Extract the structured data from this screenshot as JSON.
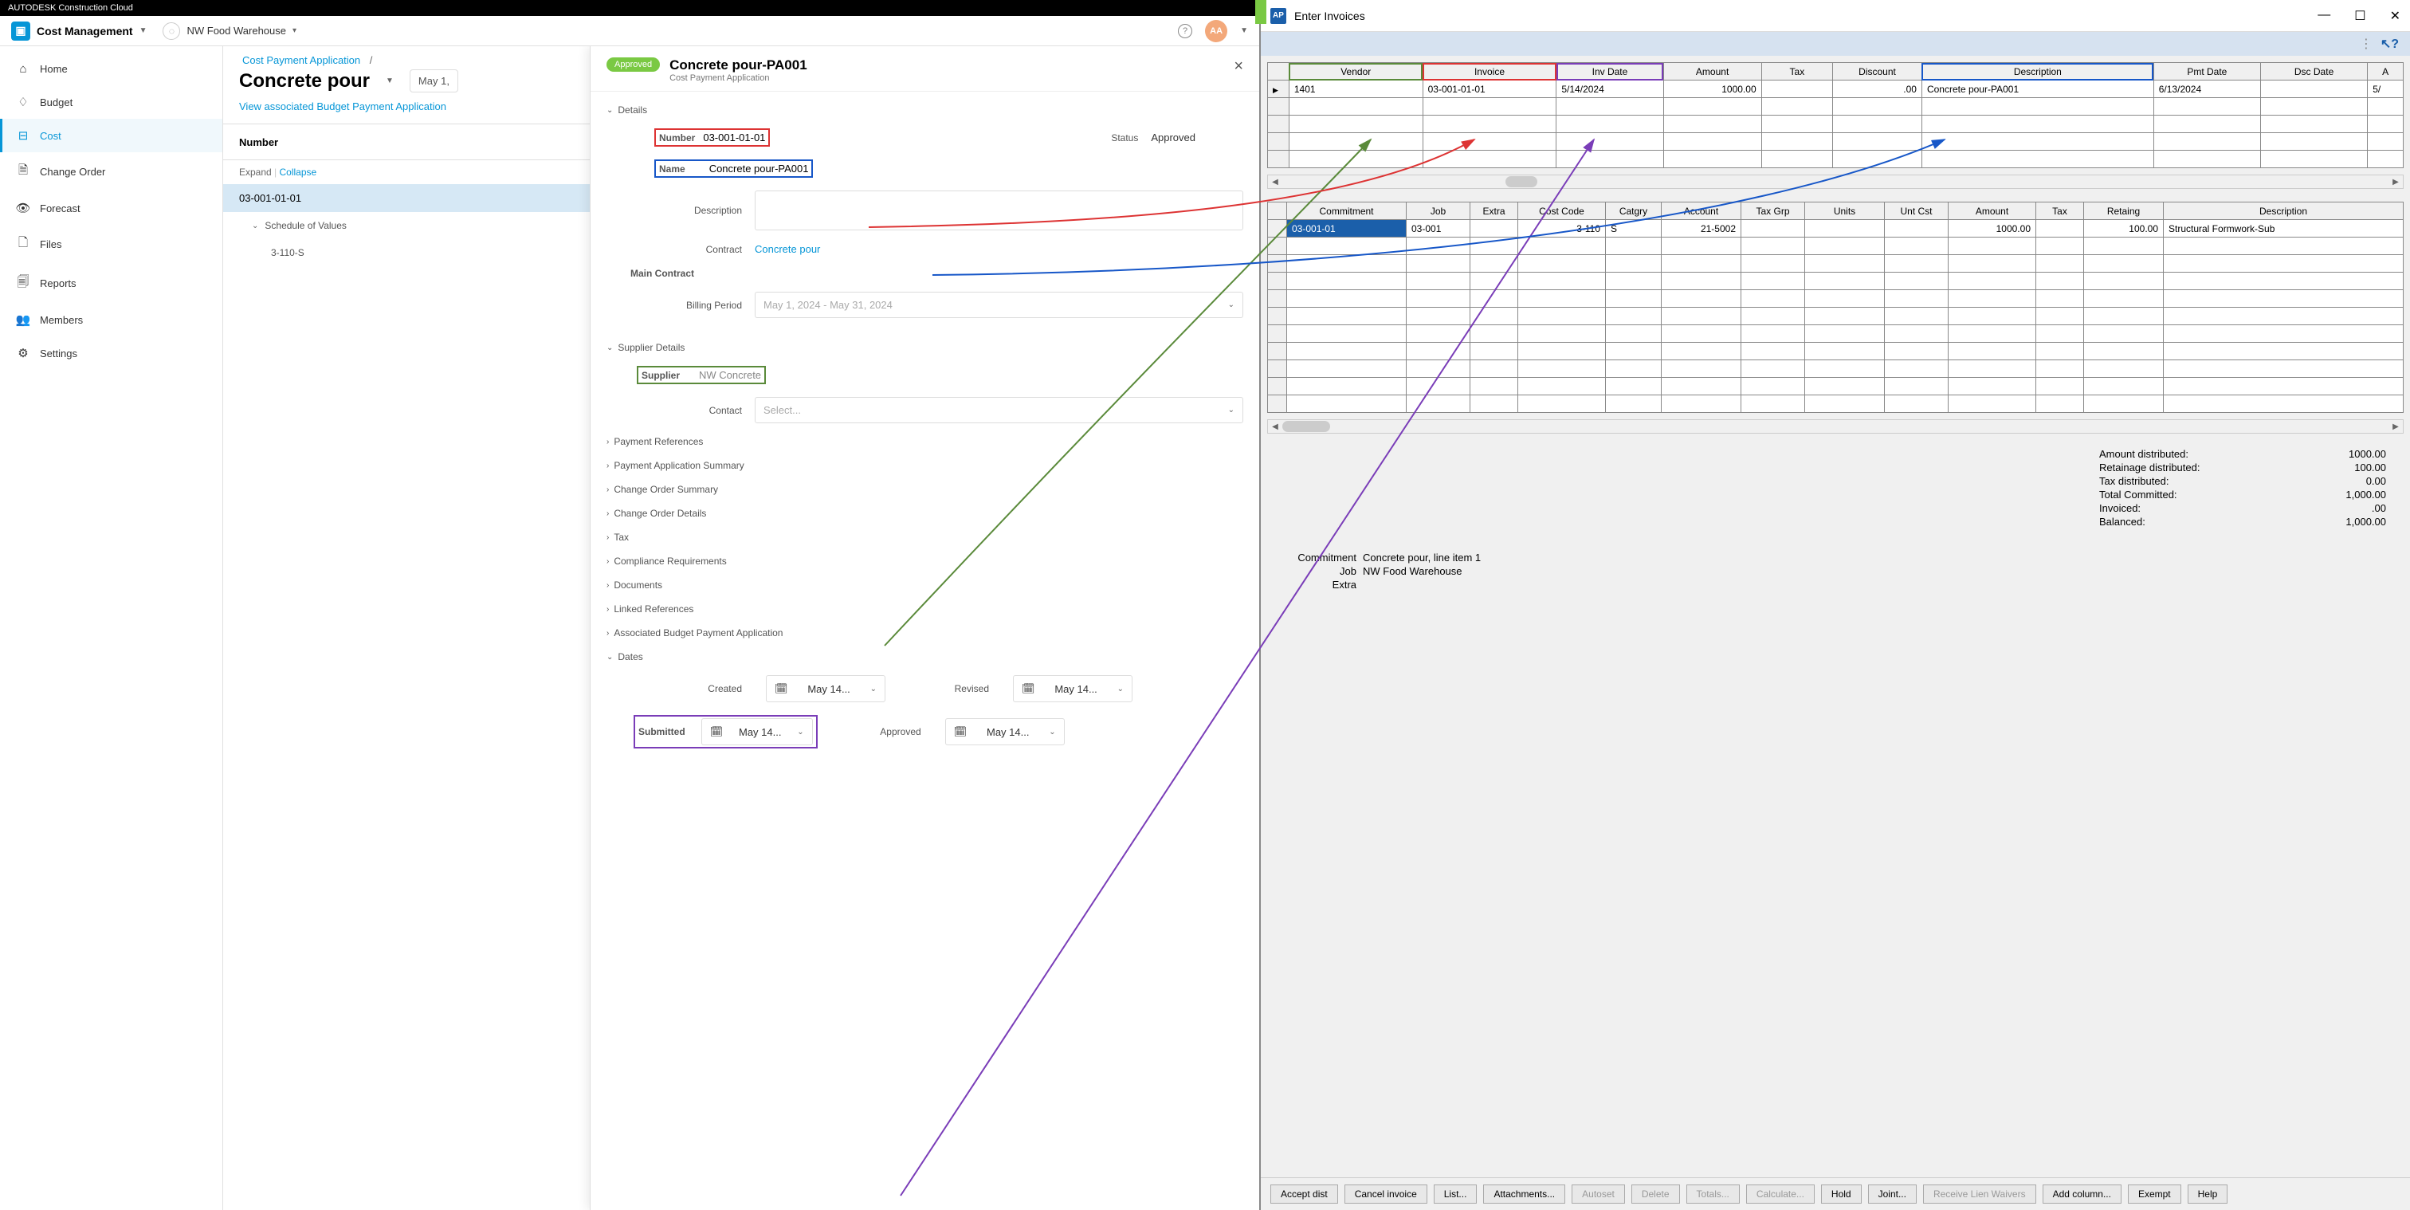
{
  "acc": {
    "brand": "AUTODESK Construction Cloud",
    "module": "Cost Management",
    "project": "NW Food Warehouse",
    "avatar": "AA",
    "nav": [
      {
        "icon": "⌂",
        "label": "Home"
      },
      {
        "icon": "♢",
        "label": "Budget"
      },
      {
        "icon": "⊟",
        "label": "Cost",
        "active": true
      },
      {
        "icon": "🗎",
        "label": "Change Order"
      },
      {
        "icon": "👁",
        "label": "Forecast"
      },
      {
        "icon": "🗋",
        "label": "Files"
      },
      {
        "icon": "🗐",
        "label": "Reports"
      },
      {
        "icon": "👥",
        "label": "Members"
      },
      {
        "icon": "⚙",
        "label": "Settings"
      }
    ],
    "breadcrumb": "Cost Payment Application",
    "page_title": "Concrete pour",
    "date_filter": "May 1,",
    "view_link": "View associated Budget Payment Application",
    "tbl_header": "Number",
    "expand": "Expand",
    "collapse": "Collapse",
    "tree": {
      "row1": "03-001-01-01",
      "row2": "Schedule of Values",
      "row3": "3-110-S"
    }
  },
  "panel": {
    "badge": "Approved",
    "title": "Concrete pour-PA001",
    "sub": "Cost Payment Application",
    "details_label": "Details",
    "fields": {
      "number_label": "Number",
      "number_value": "03-001-01-01",
      "status_label": "Status",
      "status_value": "Approved",
      "name_label": "Name",
      "name_value": "Concrete pour-PA001",
      "desc_label": "Description",
      "contract_label": "Contract",
      "contract_value": "Concrete pour",
      "main_contract_label": "Main Contract",
      "billing_label": "Billing Period",
      "billing_value": "May 1, 2024 - May 31, 2024",
      "supplier_section": "Supplier Details",
      "supplier_label": "Supplier",
      "supplier_value": "NW Concrete",
      "contact_label": "Contact",
      "contact_placeholder": "Select..."
    },
    "sections": [
      "Payment References",
      "Payment Application Summary",
      "Change Order Summary",
      "Change Order Details",
      "Tax",
      "Compliance Requirements",
      "Documents",
      "Linked References",
      "Associated Budget Payment Application",
      "Dates"
    ],
    "dates": {
      "created_label": "Created",
      "created_value": "May 14...",
      "revised_label": "Revised",
      "revised_value": "May 14...",
      "submitted_label": "Submitted",
      "submitted_value": "May 14...",
      "approved_label": "Approved",
      "approved_value": "May 14..."
    }
  },
  "win": {
    "title": "Enter Invoices",
    "invoice_headers": [
      "Vendor",
      "Invoice",
      "Inv Date",
      "Amount",
      "Tax",
      "Discount",
      "Description",
      "Pmt Date",
      "Dsc Date",
      "A"
    ],
    "invoice_row": [
      "1401",
      "03-001-01-01",
      "5/14/2024",
      "1000.00",
      "",
      ".00",
      "Concrete pour-PA001",
      "6/13/2024",
      "",
      "5/"
    ],
    "dist_headers": [
      "Commitment",
      "Job",
      "Extra",
      "Cost Code",
      "Catgry",
      "Account",
      "Tax Grp",
      "Units",
      "Unt Cst",
      "Amount",
      "Tax",
      "Retaing",
      "Description"
    ],
    "dist_row": [
      "03-001-01",
      "03-001",
      "",
      "3-110",
      "S",
      "21-5002",
      "",
      "",
      "",
      "1000.00",
      "",
      "100.00",
      "Structural Formwork-Sub"
    ],
    "summary": {
      "amt_dist_label": "Amount distributed:",
      "amt_dist": "1000.00",
      "ret_dist_label": "Retainage distributed:",
      "ret_dist": "100.00",
      "tax_dist_label": "Tax distributed:",
      "tax_dist": "0.00",
      "tot_comm_label": "Total Committed:",
      "tot_comm": "1,000.00",
      "invoiced_label": "Invoiced:",
      "invoiced": ".00",
      "balanced_label": "Balanced:",
      "balanced": "1,000.00",
      "commitment_label": "Commitment",
      "commitment": "Concrete pour, line item 1",
      "job_label": "Job",
      "job": "NW Food Warehouse",
      "extra_label": "Extra",
      "extra": ""
    },
    "buttons": [
      "Accept dist",
      "Cancel invoice",
      "List...",
      "Attachments...",
      "Autoset",
      "Delete",
      "Totals...",
      "Calculate...",
      "Hold",
      "Joint...",
      "Receive Lien Waivers",
      "Add column...",
      "Exempt",
      "Help"
    ],
    "disabled_buttons": [
      "Autoset",
      "Delete",
      "Totals...",
      "Calculate...",
      "Receive Lien Waivers"
    ]
  },
  "colors": {
    "green": "#5a8a3a",
    "red": "#d33",
    "purple": "#7a3db8",
    "blue": "#1757c8"
  }
}
